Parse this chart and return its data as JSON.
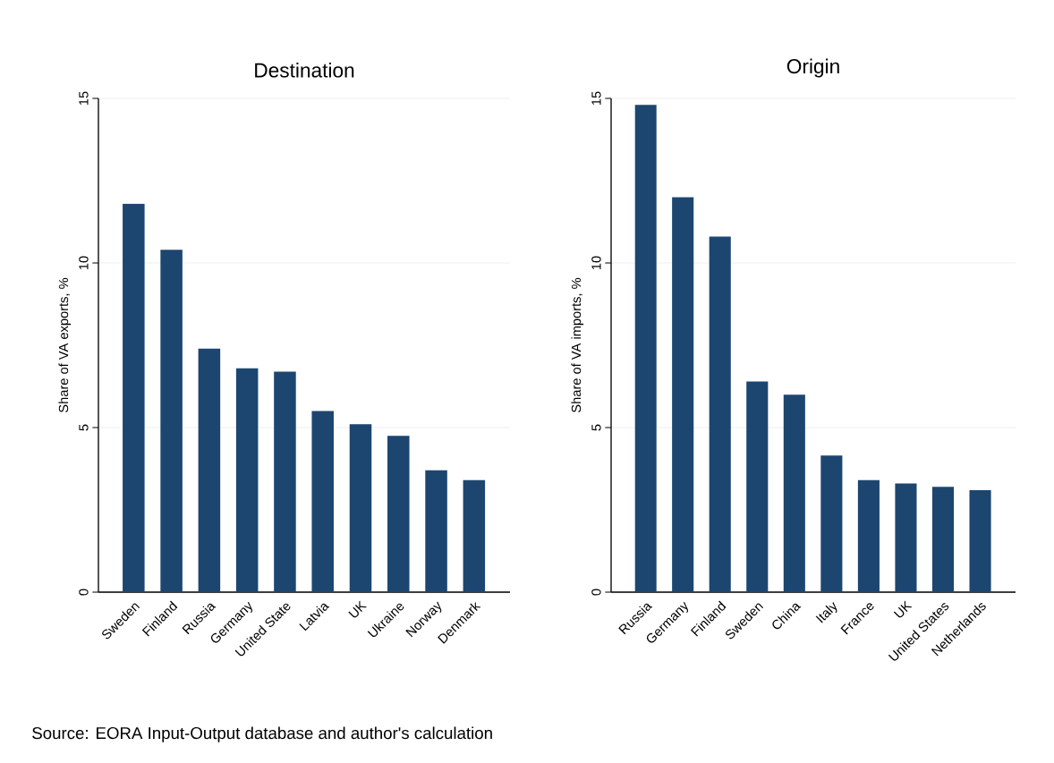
{
  "chart_data": [
    {
      "type": "bar",
      "title": "Destination",
      "ylabel": "Share of VA exports, %",
      "categories": [
        "Sweden",
        "Finland",
        "Russia",
        "Germany",
        "United State",
        "Latvia",
        "UK",
        "Ukraine",
        "Norway",
        "Denmark"
      ],
      "values": [
        11.8,
        10.4,
        7.4,
        6.8,
        6.7,
        5.5,
        5.1,
        4.75,
        3.7,
        3.4
      ],
      "color": "#1c4670",
      "ylim": [
        0,
        15
      ],
      "yticks": [
        0,
        5,
        10,
        15
      ],
      "grid": "y",
      "annotations": [
        "Source: EORA Input-Output database and author's calculation"
      ]
    },
    {
      "type": "bar",
      "title": "Origin",
      "ylabel": "Share of VA imports, %",
      "categories": [
        "Russia",
        "Germany",
        "Finland",
        "Sweden",
        "China",
        "Italy",
        "France",
        "UK",
        "United States",
        "Netherlands"
      ],
      "values": [
        14.8,
        12.0,
        10.8,
        6.4,
        6.0,
        4.15,
        3.4,
        3.3,
        3.2,
        3.1
      ],
      "color": "#1c4670",
      "ylim": [
        0,
        15
      ],
      "yticks": [
        0,
        5,
        10,
        15
      ],
      "grid": "y"
    }
  ]
}
